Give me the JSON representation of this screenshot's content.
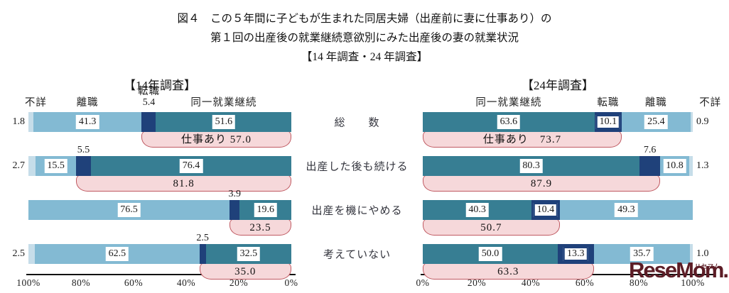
{
  "title": {
    "line1": "図４　この５年間に子どもが生まれた同居夫婦（出産前に妻に仕事あり）の",
    "line2": "第１回の出産後の就業継続意欲別にみた出産後の妻の就業状況",
    "line3": "【14 年調査・24 年調査】"
  },
  "categories": [
    "総　　数",
    "出産した後も続ける",
    "出産を機にやめる",
    "考えていない"
  ],
  "legend": {
    "same": "同一就業継続",
    "change": "転職",
    "quit": "離職",
    "unknown": "不詳"
  },
  "colors": {
    "same": "#377e93",
    "change": "#1f417a",
    "quit": "#83bad3",
    "unknown": "#c6dde9",
    "bracket_fill": "#f6d8da",
    "bracket_border": "#c05a62",
    "box_bg": "#ffffff",
    "watermark": "#5c1d26"
  },
  "watermark": {
    "text": "ReseMom.",
    "ruby": "リセマム"
  },
  "chart_data": {
    "type": "bar",
    "orientation": "horizontal-stacked",
    "unit": "%",
    "categories": [
      "総数",
      "出産した後も続ける",
      "出産を機にやめる",
      "考えていない"
    ],
    "charts": [
      {
        "title": "【14年調査】",
        "direction": "rtl",
        "x_ticks": [
          "100%",
          "80%",
          "60%",
          "40%",
          "20%",
          "0%"
        ],
        "segment_order": [
          "unknown",
          "quit",
          "change",
          "same"
        ],
        "rows": [
          {
            "unknown": 1.8,
            "quit": 41.3,
            "change": 5.4,
            "same": 51.6,
            "bracket_pct": 57.0,
            "bracket_label": "仕事あり 57.0",
            "change_display": "above"
          },
          {
            "unknown": 2.7,
            "quit": 15.5,
            "change": 5.5,
            "same": 76.4,
            "bracket_pct": 81.8,
            "bracket_label": "81.8",
            "change_display": "above"
          },
          {
            "unknown": null,
            "quit": 76.5,
            "change": 3.9,
            "same": 19.6,
            "bracket_pct": 23.5,
            "bracket_label": "23.5",
            "change_display": "above"
          },
          {
            "unknown": 2.5,
            "quit": 62.5,
            "change": 2.5,
            "same": 32.5,
            "bracket_pct": 35.0,
            "bracket_label": "35.0",
            "change_display": "above"
          }
        ]
      },
      {
        "title": "【24年調査】",
        "direction": "ltr",
        "x_ticks": [
          "0%",
          "20%",
          "40%",
          "60%",
          "80%",
          "100%"
        ],
        "segment_order": [
          "same",
          "change",
          "quit",
          "unknown"
        ],
        "rows": [
          {
            "same": 63.6,
            "change": 10.1,
            "quit": 25.4,
            "unknown": 0.9,
            "bracket_pct": 73.7,
            "bracket_label": "仕事あり　73.7",
            "change_display": "inside"
          },
          {
            "same": 80.3,
            "change": 7.6,
            "quit": 10.8,
            "unknown": 1.3,
            "bracket_pct": 87.9,
            "bracket_label": "87.9",
            "change_display": "above"
          },
          {
            "same": 40.3,
            "change": 10.4,
            "quit": 49.3,
            "unknown": null,
            "bracket_pct": 50.7,
            "bracket_label": "50.7",
            "change_display": "inside"
          },
          {
            "same": 50.0,
            "change": 13.3,
            "quit": 35.7,
            "unknown": 1.0,
            "bracket_pct": 63.3,
            "bracket_label": "63.3",
            "change_display": "inside"
          }
        ]
      }
    ]
  }
}
